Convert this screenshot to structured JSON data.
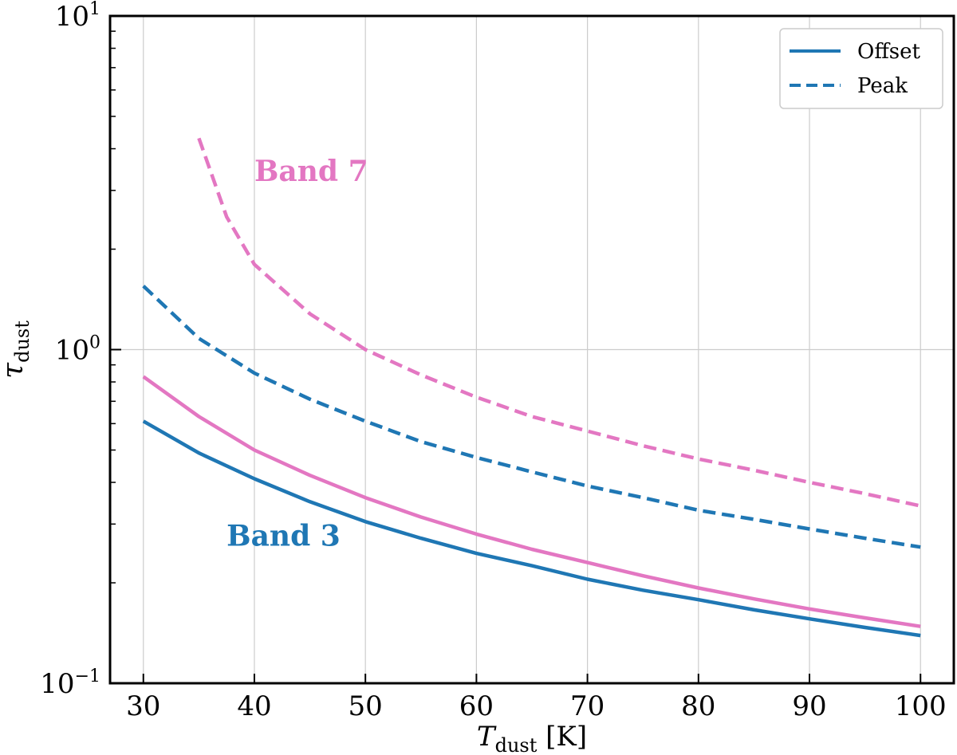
{
  "chart_data": {
    "type": "line",
    "xlabel": {
      "main": "T",
      "sub": "dust",
      "unit": " [K]"
    },
    "ylabel": {
      "main": "τ",
      "sub": "dust"
    },
    "xlim": [
      27,
      103
    ],
    "ylim": [
      0.1,
      10
    ],
    "yscale": "log",
    "grid": true,
    "legend_position": "top-right",
    "x_ticks": [
      30,
      40,
      50,
      60,
      70,
      80,
      90,
      100
    ],
    "y_ticks": [
      {
        "value": 0.1,
        "base": "10",
        "exp": "−1"
      },
      {
        "value": 1,
        "base": "10",
        "exp": "0"
      },
      {
        "value": 10,
        "base": "10",
        "exp": "1"
      }
    ],
    "legend": [
      {
        "label": "Offset",
        "style": "solid"
      },
      {
        "label": "Peak",
        "style": "dashed"
      }
    ],
    "annotations": [
      {
        "text": "Band 7",
        "x": 40.0,
        "y": 3.2,
        "color": "#e377c2"
      },
      {
        "text": "Band 3",
        "x": 37.5,
        "y": 0.258,
        "color": "#1f77b4"
      }
    ],
    "series": [
      {
        "band": "Band 3",
        "style": "solid",
        "color": "#1f77b4",
        "x": [
          30,
          35,
          40,
          45,
          50,
          55,
          60,
          65,
          70,
          75,
          80,
          85,
          90,
          95,
          100
        ],
        "y": [
          0.61,
          0.49,
          0.41,
          0.35,
          0.305,
          0.272,
          0.245,
          0.225,
          0.205,
          0.19,
          0.178,
          0.166,
          0.156,
          0.147,
          0.139
        ]
      },
      {
        "band": "Band 7",
        "style": "solid",
        "color": "#e377c2",
        "x": [
          30,
          35,
          40,
          45,
          50,
          55,
          60,
          65,
          70,
          75,
          80,
          85,
          90,
          95,
          100
        ],
        "y": [
          0.83,
          0.63,
          0.5,
          0.42,
          0.36,
          0.315,
          0.28,
          0.252,
          0.23,
          0.21,
          0.193,
          0.179,
          0.167,
          0.157,
          0.148
        ]
      },
      {
        "band": "Band 3",
        "style": "dashed",
        "color": "#1f77b4",
        "x": [
          30,
          35,
          40,
          45,
          50,
          55,
          60,
          65,
          70,
          75,
          80,
          85,
          90,
          95,
          100
        ],
        "y": [
          1.55,
          1.08,
          0.85,
          0.71,
          0.61,
          0.53,
          0.475,
          0.43,
          0.39,
          0.36,
          0.33,
          0.31,
          0.29,
          0.272,
          0.256
        ]
      },
      {
        "band": "Band 7",
        "style": "dashed",
        "color": "#e377c2",
        "x": [
          35,
          37.5,
          40,
          45,
          50,
          55,
          60,
          65,
          70,
          75,
          80,
          85,
          90,
          95,
          100
        ],
        "y": [
          4.3,
          2.5,
          1.8,
          1.28,
          1.0,
          0.84,
          0.72,
          0.63,
          0.57,
          0.515,
          0.47,
          0.435,
          0.4,
          0.37,
          0.34
        ]
      }
    ]
  }
}
